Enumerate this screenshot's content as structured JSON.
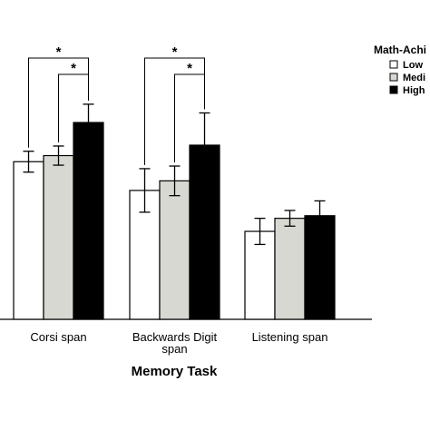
{
  "chart_data": {
    "type": "bar",
    "title": "",
    "xlabel": "Memory Task",
    "ylabel": "",
    "categories": [
      "Corsi span",
      "Backwards Digit span",
      "Listening span"
    ],
    "category_lines": [
      [
        "Corsi span"
      ],
      [
        "Backwards Digit",
        "span"
      ],
      [
        "Listening span"
      ]
    ],
    "ylim": [
      0,
      300
    ],
    "grid": false,
    "legend": {
      "title": "Math-Achi",
      "placement": "top-right"
    },
    "series": [
      {
        "name": "Low",
        "color": "#ffffff",
        "values": [
          181,
          148,
          101
        ],
        "error": [
          12,
          25,
          15
        ]
      },
      {
        "name": "Medi",
        "color": "#d8d8d3",
        "values": [
          188,
          159,
          116
        ],
        "error": [
          11,
          17,
          9
        ]
      },
      {
        "name": "High",
        "color": "#000000",
        "values": [
          226,
          200,
          119
        ],
        "error": [
          21,
          37,
          17
        ]
      }
    ],
    "significance": [
      {
        "category": 0,
        "from_series": 0,
        "to_series": 2,
        "label": "*"
      },
      {
        "category": 0,
        "from_series": 1,
        "to_series": 2,
        "label": "*"
      },
      {
        "category": 1,
        "from_series": 0,
        "to_series": 2,
        "label": "*"
      },
      {
        "category": 1,
        "from_series": 1,
        "to_series": 2,
        "label": "*"
      }
    ]
  }
}
